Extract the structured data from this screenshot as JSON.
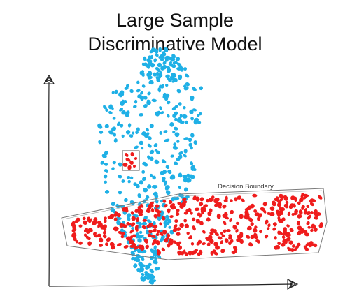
{
  "title": {
    "line1": "Large Sample",
    "line2": "Discriminative Model"
  },
  "boundary_label": "Decision Boundary",
  "colors": {
    "class_a": "#1fb0e6",
    "class_b": "#ef1c1c",
    "axis": "#222222",
    "boundary": "#7a7a7a",
    "highlight_box": "#555555"
  },
  "icons": {
    "y_axis_arrow": "scribbled-arrowhead-up",
    "x_axis_arrow": "scribbled-arrowhead-right"
  }
}
